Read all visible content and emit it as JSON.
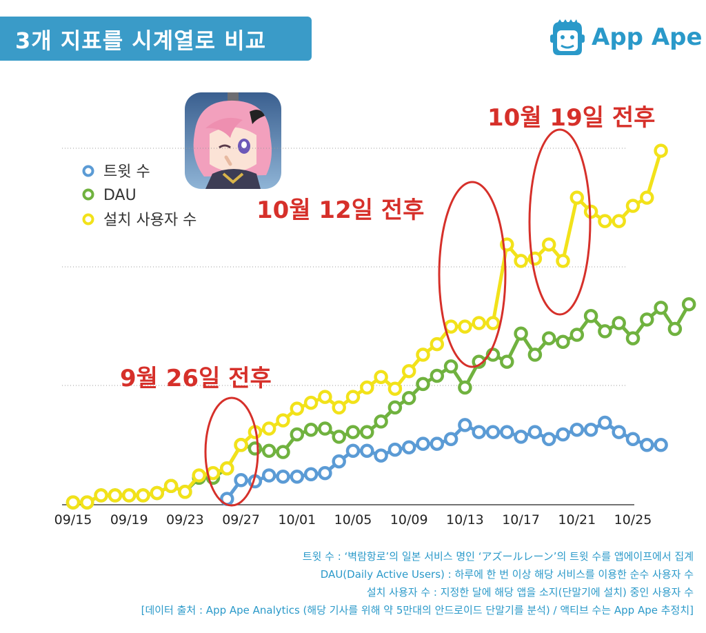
{
  "header": {
    "title": "3개 지표를 시계열로 비교"
  },
  "logo": {
    "text": "App Ape",
    "icon": "ape-face-icon"
  },
  "app_icon": {
    "icon": "game-character-icon"
  },
  "colors": {
    "twit": "#5b9bd5",
    "dau": "#70b23f",
    "install": "#f2e21a",
    "accent": "#d6302a",
    "brand": "#2a99c9"
  },
  "chart_data": {
    "type": "line",
    "title": "",
    "xlabel": "",
    "ylabel": "",
    "grid": true,
    "legend": "top-left",
    "ylim": [
      0,
      300
    ],
    "tick_labels": [
      "09/15",
      "09/19",
      "09/23",
      "09/27",
      "10/01",
      "10/05",
      "10/09",
      "10/13",
      "10/17",
      "10/21",
      "10/25"
    ],
    "tick_index": [
      0,
      4,
      8,
      12,
      16,
      20,
      24,
      28,
      32,
      36,
      40
    ],
    "series": [
      {
        "name": "트윗 수",
        "start_index": 11,
        "values": [
          5,
          21,
          20,
          25,
          24,
          24,
          26,
          27,
          37,
          46,
          46,
          42,
          47,
          49,
          52,
          52,
          56,
          68,
          62,
          62,
          62,
          58,
          62,
          56,
          60,
          64,
          64,
          70,
          62,
          56,
          51,
          51
        ]
      },
      {
        "name": "DAU",
        "start_index": 0,
        "values": [
          2,
          2,
          8,
          8,
          8,
          8,
          10,
          16,
          11,
          23,
          23,
          31,
          51,
          48,
          46,
          45,
          60,
          64,
          65,
          58,
          62,
          62,
          71,
          83,
          91,
          103,
          110,
          118,
          100,
          122,
          128,
          122,
          146,
          128,
          142,
          139,
          145,
          161,
          148,
          155,
          142,
          158,
          168,
          150,
          171
        ]
      },
      {
        "name": "설치 사용자 수",
        "start_index": 0,
        "values": [
          2,
          2,
          8,
          8,
          8,
          8,
          10,
          16,
          11,
          25,
          27,
          31,
          51,
          62,
          65,
          72,
          82,
          87,
          92,
          83,
          92,
          100,
          109,
          99,
          114,
          128,
          137,
          152,
          152,
          155,
          155,
          222,
          208,
          210,
          222,
          208,
          262,
          250,
          242,
          242,
          255,
          262,
          302
        ]
      }
    ]
  },
  "annotations": [
    {
      "id": "sep26",
      "text": "9월 26일 전후"
    },
    {
      "id": "oct12",
      "text": "10월 12일 전후"
    },
    {
      "id": "oct19",
      "text": "10월 19일 전후"
    }
  ],
  "footnotes": [
    "트윗 수 : ‘벽람항로’의 일본 서비스 명인 ‘アズールレーン’의 트윗 수를 앱에이프에서 집계",
    "DAU(Daily Active Users) : 하루에 한 번 이상 해당 서비스를 이용한 순수 사용자 수",
    "설치 사용자 수 : 지정한 달에 해당 앱을 소지(단말기에 설치) 중인 사용자 수",
    "[데이터 출처 : App Ape Analytics (해당 기사를 위해 약 5만대의 안드로이드 단말기를 분석) / 액티브 수는 App Ape 추정치]"
  ]
}
